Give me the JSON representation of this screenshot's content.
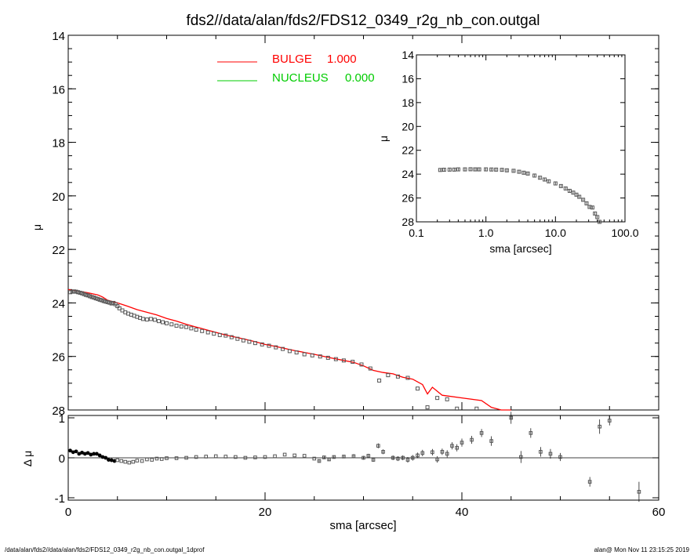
{
  "title": "fds2//data/alan/fds2/FDS12_0349_r2g_nb_con.outgal",
  "footer_left": "/data/alan/fds2//data/alan/fds2/FDS12_0349_r2g_nb_con.outgal_1dprof",
  "footer_right": "alan@  Mon Nov 11 23:15:25 2019",
  "colors": {
    "bulge": "#ff0000",
    "nucleus": "#00cc00",
    "data": "#555555"
  },
  "chart_data": [
    {
      "id": "main",
      "type": "scatter",
      "xlabel": "",
      "ylabel": "μ",
      "xlim": [
        0,
        60
      ],
      "ylim": [
        28,
        14
      ],
      "inverted_y": true,
      "xticks": [
        0,
        20,
        40,
        60
      ],
      "yticks": [
        14,
        16,
        18,
        20,
        22,
        24,
        26,
        28
      ],
      "legend_position": "top-center",
      "legend": [
        {
          "name": "BULGE",
          "value": "1.000",
          "color": "#ff0000"
        },
        {
          "name": "NUCLEUS",
          "value": "0.000",
          "color": "#00cc00"
        }
      ],
      "series": [
        {
          "name": "data",
          "x": [
            0.2,
            0.4,
            0.6,
            0.8,
            1.0,
            1.2,
            1.4,
            1.6,
            1.8,
            2.0,
            2.2,
            2.4,
            2.6,
            2.8,
            3.0,
            3.2,
            3.4,
            3.6,
            3.8,
            4.0,
            4.2,
            4.4,
            4.6,
            4.8,
            5.0,
            5.2,
            5.5,
            5.8,
            6.1,
            6.4,
            6.7,
            7.0,
            7.3,
            7.6,
            8.0,
            8.4,
            8.8,
            9.2,
            9.6,
            10.0,
            10.5,
            11.0,
            11.5,
            12.0,
            12.5,
            13.0,
            13.6,
            14.2,
            14.8,
            15.4,
            16.0,
            16.6,
            17.2,
            17.8,
            18.4,
            19.0,
            19.7,
            20.4,
            21.1,
            21.8,
            22.5,
            23.2,
            24.0,
            24.8,
            25.6,
            26.4,
            27.2,
            28.0,
            28.9,
            29.8,
            30.7,
            31.6,
            32.5,
            33.5,
            34.5,
            35.5,
            36.5,
            37.5,
            38.5,
            39.5,
            40.5,
            41.5,
            42.5
          ],
          "y": [
            23.6,
            23.58,
            23.57,
            23.58,
            23.6,
            23.62,
            23.64,
            23.67,
            23.7,
            23.72,
            23.75,
            23.78,
            23.8,
            23.83,
            23.85,
            23.88,
            23.9,
            23.93,
            23.95,
            23.97,
            23.99,
            24.02,
            24.0,
            24.05,
            24.12,
            24.2,
            24.28,
            24.35,
            24.4,
            24.44,
            24.48,
            24.52,
            24.56,
            24.6,
            24.62,
            24.6,
            24.63,
            24.68,
            24.72,
            24.76,
            24.8,
            24.85,
            24.88,
            24.9,
            24.95,
            25.0,
            25.05,
            25.1,
            25.15,
            25.2,
            25.22,
            25.28,
            25.34,
            25.4,
            25.45,
            25.5,
            25.55,
            25.6,
            25.66,
            25.72,
            25.8,
            25.85,
            25.92,
            25.96,
            26.0,
            26.05,
            26.1,
            26.15,
            26.2,
            26.3,
            26.45,
            26.9,
            26.7,
            26.75,
            26.8,
            27.2,
            27.9,
            27.55,
            27.6,
            27.95,
            28.0,
            27.95,
            28.0
          ]
        },
        {
          "name": "BULGE",
          "x": [
            0,
            1,
            2,
            3,
            3.5,
            4,
            5,
            6,
            7,
            8,
            9,
            10,
            11,
            12,
            13,
            14,
            15,
            16,
            17,
            18,
            19,
            20,
            21,
            22,
            23,
            24,
            25,
            26,
            27,
            28,
            29,
            30,
            31,
            32,
            33,
            34,
            35,
            36,
            36.5,
            37,
            38,
            40,
            42,
            43,
            44,
            45
          ],
          "y": [
            23.5,
            23.55,
            23.62,
            23.7,
            23.78,
            23.9,
            24.0,
            24.12,
            24.25,
            24.35,
            24.45,
            24.58,
            24.68,
            24.8,
            24.9,
            25.0,
            25.1,
            25.2,
            25.28,
            25.36,
            25.45,
            25.55,
            25.62,
            25.7,
            25.78,
            25.85,
            25.92,
            26.0,
            26.08,
            26.15,
            26.22,
            26.35,
            26.52,
            26.6,
            26.65,
            26.78,
            26.85,
            27.05,
            27.4,
            27.15,
            27.45,
            27.55,
            27.65,
            27.9,
            28.0,
            28.0
          ]
        }
      ]
    },
    {
      "id": "inset",
      "type": "scatter",
      "xlabel": "sma [arcsec]",
      "ylabel": "μ",
      "xscale": "log",
      "xlim": [
        0.1,
        100.0
      ],
      "ylim": [
        28,
        14
      ],
      "inverted_y": true,
      "xtick_labels": [
        "0.1",
        "1.0",
        "10.0",
        "100.0"
      ],
      "xticks": [
        0.1,
        1.0,
        10.0,
        100.0
      ],
      "yticks": [
        14,
        16,
        18,
        20,
        22,
        24,
        26,
        28
      ],
      "series": [
        {
          "name": "data",
          "x": [
            0.22,
            0.25,
            0.3,
            0.35,
            0.4,
            0.5,
            0.6,
            0.7,
            0.8,
            1.0,
            1.2,
            1.4,
            1.7,
            2.0,
            2.5,
            3.0,
            3.5,
            4.0,
            5.0,
            6.0,
            7.0,
            8.0,
            10.0,
            12.0,
            14.0,
            16.0,
            18.0,
            20.0,
            22.0,
            25.0,
            28.0,
            31.0,
            34.0,
            37.0,
            40.0,
            43.0
          ],
          "y": [
            23.65,
            23.63,
            23.62,
            23.62,
            23.6,
            23.6,
            23.59,
            23.6,
            23.6,
            23.6,
            23.61,
            23.62,
            23.64,
            23.68,
            23.72,
            23.8,
            23.88,
            23.95,
            24.12,
            24.3,
            24.45,
            24.6,
            24.78,
            25.0,
            25.2,
            25.4,
            25.55,
            25.72,
            25.9,
            26.15,
            26.45,
            26.75,
            26.8,
            27.3,
            27.6,
            28.0
          ]
        }
      ]
    },
    {
      "id": "residual",
      "type": "scatter",
      "xlabel": "sma [arcsec]",
      "ylabel": "Δ μ",
      "xlim": [
        0,
        60
      ],
      "ylim": [
        -1,
        1
      ],
      "xticks": [
        0,
        20,
        40,
        60
      ],
      "yticks": [
        -1,
        0,
        1
      ],
      "series": [
        {
          "name": "residual",
          "x": [
            0.2,
            0.5,
            0.8,
            1.1,
            1.4,
            1.7,
            2.0,
            2.3,
            2.6,
            2.9,
            3.2,
            3.5,
            3.8,
            4.1,
            4.4,
            4.7,
            5.0,
            5.4,
            5.8,
            6.2,
            6.6,
            7.0,
            7.5,
            8.0,
            8.5,
            9.0,
            9.5,
            10.0,
            11.0,
            12.0,
            13.0,
            14.0,
            15.0,
            16.0,
            17.0,
            18.0,
            19.0,
            20.0,
            21.0,
            22.0,
            23.0,
            24.0,
            25.0,
            25.5,
            26.0,
            26.5,
            27.0,
            28.0,
            29.0,
            30.0,
            30.5,
            31.0,
            31.5,
            32.0,
            33.0,
            33.5,
            34.0,
            34.5,
            35.0,
            35.5,
            36.0,
            37.0,
            37.5,
            38.0,
            38.5,
            39.0,
            39.5,
            40.0,
            41.0,
            42.0,
            43.0,
            45.0,
            46.0,
            47.0,
            48.0,
            49.0,
            50.0,
            53.0,
            54.0,
            55.0,
            58.0
          ],
          "y": [
            0.18,
            0.14,
            0.16,
            0.1,
            0.13,
            0.1,
            0.12,
            0.08,
            0.1,
            0.1,
            0.06,
            0.02,
            0.0,
            -0.05,
            -0.06,
            -0.08,
            -0.06,
            -0.08,
            -0.1,
            -0.12,
            -0.1,
            -0.07,
            -0.08,
            -0.04,
            -0.05,
            -0.02,
            -0.03,
            -0.01,
            -0.01,
            0.0,
            0.02,
            0.03,
            0.04,
            0.03,
            0.02,
            0.0,
            0.01,
            0.02,
            0.04,
            0.08,
            0.06,
            0.05,
            -0.02,
            -0.08,
            0.01,
            -0.04,
            0.02,
            0.03,
            0.04,
            0.0,
            0.05,
            -0.05,
            0.3,
            0.15,
            0.0,
            -0.02,
            0.0,
            -0.05,
            0.0,
            0.06,
            0.12,
            0.14,
            -0.04,
            0.15,
            0.1,
            0.3,
            0.25,
            0.38,
            0.45,
            0.62,
            0.42,
            1.0,
            0.02,
            0.62,
            0.15,
            0.1,
            0.02,
            -0.6,
            0.78,
            0.93,
            -0.85
          ],
          "errors": [
            0.02,
            0.02,
            0.02,
            0.02,
            0.02,
            0.02,
            0.02,
            0.02,
            0.02,
            0.02,
            0.02,
            0.02,
            0.02,
            0.02,
            0.02,
            0.02,
            0.02,
            0.02,
            0.02,
            0.02,
            0.02,
            0.02,
            0.02,
            0.02,
            0.02,
            0.02,
            0.02,
            0.02,
            0.02,
            0.02,
            0.02,
            0.02,
            0.02,
            0.02,
            0.02,
            0.02,
            0.02,
            0.02,
            0.03,
            0.03,
            0.03,
            0.03,
            0.03,
            0.04,
            0.04,
            0.04,
            0.04,
            0.04,
            0.05,
            0.05,
            0.05,
            0.05,
            0.06,
            0.06,
            0.06,
            0.06,
            0.06,
            0.07,
            0.07,
            0.07,
            0.08,
            0.08,
            0.08,
            0.08,
            0.09,
            0.09,
            0.09,
            0.1,
            0.1,
            0.1,
            0.12,
            0.15,
            0.15,
            0.12,
            0.12,
            0.12,
            0.1,
            0.12,
            0.18,
            0.12,
            0.25
          ]
        }
      ]
    }
  ]
}
